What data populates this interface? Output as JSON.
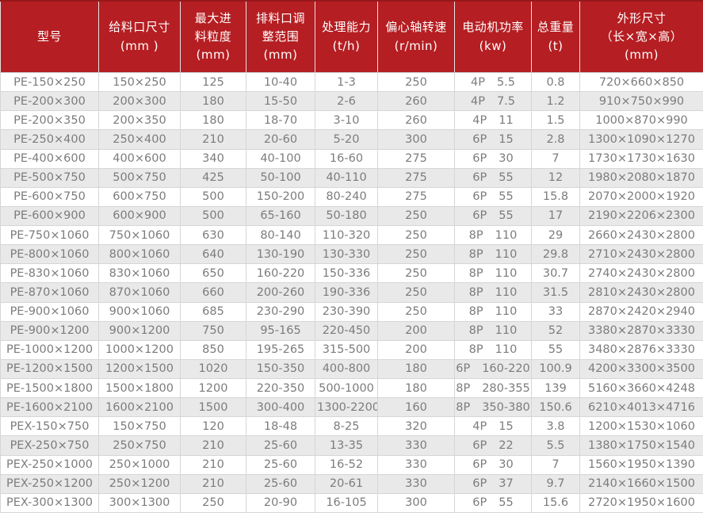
{
  "colors": {
    "header_bg": "#b51e22",
    "header_top_border": "#96181b",
    "header_text": "#ffffff",
    "row_bg": "#ffffff",
    "row_alt_bg": "#e9e9e9",
    "cell_text": "#7c7c7c",
    "cell_border": "#d6d6d6"
  },
  "header": {
    "columns": [
      {
        "key": "model",
        "lines": [
          "型号"
        ]
      },
      {
        "key": "feed_size",
        "lines": [
          "给料口尺寸",
          "(mm )"
        ]
      },
      {
        "key": "max_feed_size",
        "lines": [
          "最大进",
          "料粒度",
          "(mm)"
        ]
      },
      {
        "key": "discharge_range",
        "lines": [
          "排料口调",
          "整范围",
          "(mm)"
        ]
      },
      {
        "key": "capacity",
        "lines": [
          "处理能力",
          "(t/h)"
        ]
      },
      {
        "key": "shaft_speed",
        "lines": [
          "偏心轴转速",
          "(r/min)"
        ]
      },
      {
        "key": "motor_power",
        "lines": [
          "电动机功率",
          "(kw)"
        ]
      },
      {
        "key": "total_weight",
        "lines": [
          "总重量",
          "(t)"
        ]
      },
      {
        "key": "dimensions",
        "lines": [
          "外形尺寸",
          "（长×宽×高）",
          "(mm)"
        ]
      }
    ],
    "cell_groups": [
      [
        "model"
      ],
      [
        "feed_size"
      ],
      [
        "max_feed_size"
      ],
      [
        "discharge_range"
      ],
      [
        "capacity"
      ],
      [
        "speed"
      ],
      [
        "motor_pole",
        "motor_kw"
      ],
      [
        "weight"
      ],
      [
        "dimensions"
      ]
    ]
  },
  "chart_data": {
    "type": "table",
    "columns": [
      "型号",
      "给料口尺寸 (mm )",
      "最大进料粒度 (mm)",
      "排料口调整范围 (mm)",
      "处理能力 (t/h)",
      "偏心轴转速 (r/min)",
      "电动机功率 (kw)",
      "总重量 (t)",
      "外形尺寸（长×宽×高）(mm)"
    ],
    "rows": [
      {
        "model": "PE-150×250",
        "feed_size": "150×250",
        "max_feed_size": "125",
        "discharge_range": "10-40",
        "capacity": "1-3",
        "speed": "250",
        "motor_pole": "4P",
        "motor_kw": "5.5",
        "weight": "0.8",
        "dimensions": "720×660×850"
      },
      {
        "model": "PE-200×300",
        "feed_size": "200×300",
        "max_feed_size": "180",
        "discharge_range": "15-50",
        "capacity": "2-6",
        "speed": "260",
        "motor_pole": "4P",
        "motor_kw": "7.5",
        "weight": "1.2",
        "dimensions": "910×750×990"
      },
      {
        "model": "PE-200×350",
        "feed_size": "200×350",
        "max_feed_size": "180",
        "discharge_range": "18-70",
        "capacity": "3-10",
        "speed": "260",
        "motor_pole": "4P",
        "motor_kw": "11",
        "weight": "1.5",
        "dimensions": "1000×870×990"
      },
      {
        "model": "PE-250×400",
        "feed_size": "250×400",
        "max_feed_size": "210",
        "discharge_range": "20-60",
        "capacity": "5-20",
        "speed": "300",
        "motor_pole": "6P",
        "motor_kw": "15",
        "weight": "2.8",
        "dimensions": "1300×1090×1270"
      },
      {
        "model": "PE-400×600",
        "feed_size": "400×600",
        "max_feed_size": "340",
        "discharge_range": "40-100",
        "capacity": "16-60",
        "speed": "275",
        "motor_pole": "6P",
        "motor_kw": "30",
        "weight": "7",
        "dimensions": "1730×1730×1630"
      },
      {
        "model": "PE-500×750",
        "feed_size": "500×750",
        "max_feed_size": "425",
        "discharge_range": "50-100",
        "capacity": "40-110",
        "speed": "275",
        "motor_pole": "6P",
        "motor_kw": "55",
        "weight": "12",
        "dimensions": "1980×2080×1870"
      },
      {
        "model": "PE-600×750",
        "feed_size": "600×750",
        "max_feed_size": "500",
        "discharge_range": "150-200",
        "capacity": "80-240",
        "speed": "275",
        "motor_pole": "6P",
        "motor_kw": "55",
        "weight": "15.8",
        "dimensions": "2070×2000×1920"
      },
      {
        "model": "PE-600×900",
        "feed_size": "600×900",
        "max_feed_size": "500",
        "discharge_range": "65-160",
        "capacity": "50-180",
        "speed": "250",
        "motor_pole": "6P",
        "motor_kw": "55",
        "weight": "17",
        "dimensions": "2190×2206×2300"
      },
      {
        "model": "PE-750×1060",
        "feed_size": "750×1060",
        "max_feed_size": "630",
        "discharge_range": "80-140",
        "capacity": "110-320",
        "speed": "250",
        "motor_pole": "8P",
        "motor_kw": "110",
        "weight": "29",
        "dimensions": "2660×2430×2800"
      },
      {
        "model": "PE-800×1060",
        "feed_size": "800×1060",
        "max_feed_size": "640",
        "discharge_range": "130-190",
        "capacity": "130-330",
        "speed": "250",
        "motor_pole": "8P",
        "motor_kw": "110",
        "weight": "29.8",
        "dimensions": "2710×2430×2800"
      },
      {
        "model": "PE-830×1060",
        "feed_size": "830×1060",
        "max_feed_size": "650",
        "discharge_range": "160-220",
        "capacity": "150-336",
        "speed": "250",
        "motor_pole": "8P",
        "motor_kw": "110",
        "weight": "30.7",
        "dimensions": "2740×2430×2800"
      },
      {
        "model": "PE-870×1060",
        "feed_size": "870×1060",
        "max_feed_size": "660",
        "discharge_range": "200-260",
        "capacity": "190-336",
        "speed": "250",
        "motor_pole": "8P",
        "motor_kw": "110",
        "weight": "31.5",
        "dimensions": "2810×2430×2800"
      },
      {
        "model": "PE-900×1060",
        "feed_size": "900×1060",
        "max_feed_size": "685",
        "discharge_range": "230-290",
        "capacity": "230-390",
        "speed": "250",
        "motor_pole": "8P",
        "motor_kw": "110",
        "weight": "33",
        "dimensions": "2870×2420×2940"
      },
      {
        "model": "PE-900×1200",
        "feed_size": "900×1200",
        "max_feed_size": "750",
        "discharge_range": "95-165",
        "capacity": "220-450",
        "speed": "200",
        "motor_pole": "8P",
        "motor_kw": "110",
        "weight": "52",
        "dimensions": "3380×2870×3330"
      },
      {
        "model": "PE-1000×1200",
        "feed_size": "1000×1200",
        "max_feed_size": "850",
        "discharge_range": "195-265",
        "capacity": "315-500",
        "speed": "200",
        "motor_pole": "8P",
        "motor_kw": "110",
        "weight": "55",
        "dimensions": "3480×2876×3330"
      },
      {
        "model": "PE-1200×1500",
        "feed_size": "1200×1500",
        "max_feed_size": "1020",
        "discharge_range": "150-350",
        "capacity": "400-800",
        "speed": "180",
        "motor_pole": "6P",
        "motor_kw": "160-220",
        "weight": "100.9",
        "dimensions": "4200×3300×3500"
      },
      {
        "model": "PE-1500×1800",
        "feed_size": "1500×1800",
        "max_feed_size": "1200",
        "discharge_range": "220-350",
        "capacity": "500-1000",
        "speed": "180",
        "motor_pole": "8P",
        "motor_kw": "280-355",
        "weight": "139",
        "dimensions": "5160×3660×4248"
      },
      {
        "model": "PE-1600×2100",
        "feed_size": "1600×2100",
        "max_feed_size": "1500",
        "discharge_range": "300-400",
        "capacity": "1300-2200",
        "speed": "160",
        "motor_pole": "8P",
        "motor_kw": "350-380",
        "weight": "150.6",
        "dimensions": "6210×4013×4716"
      },
      {
        "model": "PEX-150×750",
        "feed_size": "150×750",
        "max_feed_size": "120",
        "discharge_range": "18-48",
        "capacity": "8-25",
        "speed": "320",
        "motor_pole": "4P",
        "motor_kw": "15",
        "weight": "3.8",
        "dimensions": "1200×1530×1060"
      },
      {
        "model": "PEX-250×750",
        "feed_size": "250×750",
        "max_feed_size": "210",
        "discharge_range": "25-60",
        "capacity": "13-35",
        "speed": "330",
        "motor_pole": "6P",
        "motor_kw": "22",
        "weight": "5.5",
        "dimensions": "1380×1750×1540"
      },
      {
        "model": "PEX-250×1000",
        "feed_size": "250×1000",
        "max_feed_size": "210",
        "discharge_range": "25-60",
        "capacity": "16-52",
        "speed": "330",
        "motor_pole": "6P",
        "motor_kw": "30",
        "weight": "7",
        "dimensions": "1560×1950×1390"
      },
      {
        "model": "PEX-250×1200",
        "feed_size": "250×1200",
        "max_feed_size": "210",
        "discharge_range": "25-60",
        "capacity": "20-61",
        "speed": "330",
        "motor_pole": "6P",
        "motor_kw": "37",
        "weight": "9.7",
        "dimensions": "2140×1660×1500"
      },
      {
        "model": "PEX-300×1300",
        "feed_size": "300×1300",
        "max_feed_size": "250",
        "discharge_range": "20-90",
        "capacity": "16-105",
        "speed": "300",
        "motor_pole": "6P",
        "motor_kw": "55",
        "weight": "15.6",
        "dimensions": "2720×1950×1600"
      }
    ]
  }
}
